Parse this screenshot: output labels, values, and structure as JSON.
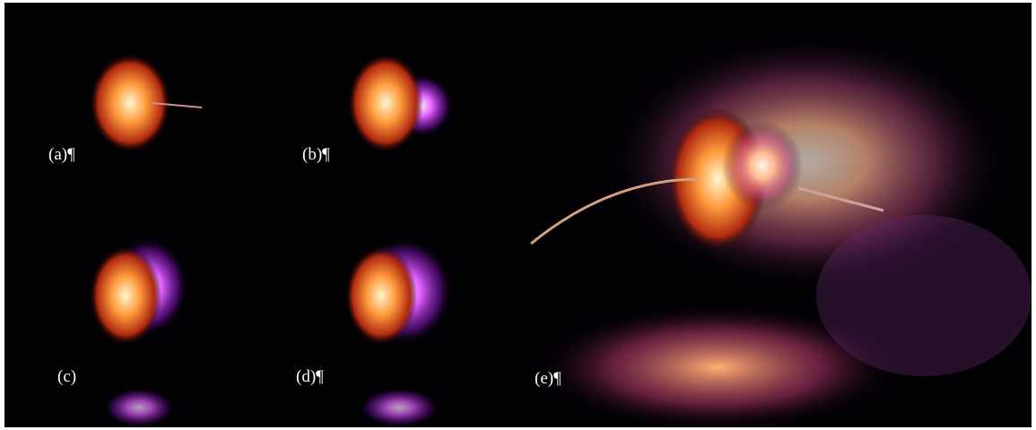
{
  "panels": [
    {
      "label": "(a)¶"
    },
    {
      "label": "(b)¶"
    },
    {
      "label": "(c)"
    },
    {
      "label": "(d)¶"
    },
    {
      "label": "(e)¶"
    }
  ]
}
